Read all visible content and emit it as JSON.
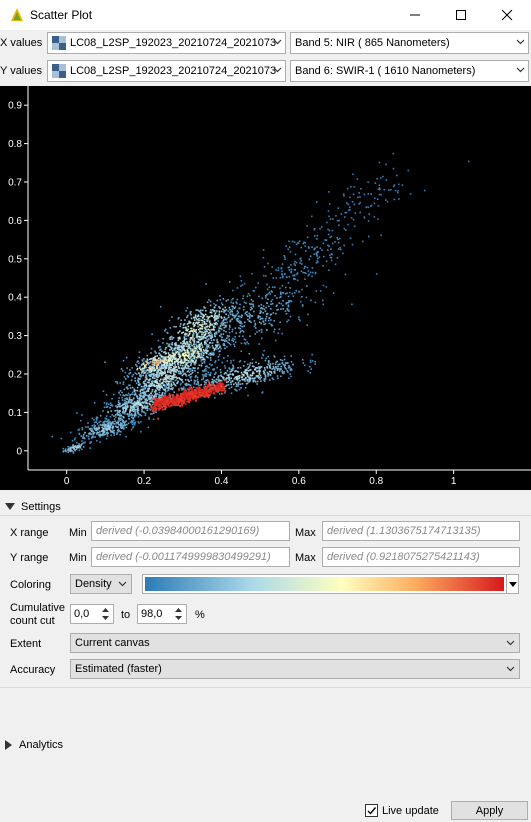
{
  "window": {
    "title": "Scatter Plot",
    "controls": [
      "minimize-icon",
      "maximize-icon",
      "close-icon"
    ]
  },
  "x_values": {
    "label": "X values",
    "layer": "LC08_L2SP_192023_20210724_2021073",
    "band": "Band 5: NIR ( 865 Nanometers)"
  },
  "y_values": {
    "label": "Y values",
    "layer": "LC08_L2SP_192023_20210724_2021073",
    "band": "Band 6: SWIR-1 ( 1610 Nanometers)"
  },
  "chart_data": {
    "type": "scatter",
    "title": "",
    "xlabel": "",
    "ylabel": "",
    "xlim": [
      -0.1,
      1.2
    ],
    "ylim": [
      -0.05,
      0.95
    ],
    "x_ticks": [
      "0",
      "0.2",
      "0.4",
      "0.6",
      "0.8",
      "1"
    ],
    "y_ticks": [
      "0",
      "0.1",
      "0.2",
      "0.3",
      "0.4",
      "0.5",
      "0.6",
      "0.7",
      "0.8",
      "0.9"
    ],
    "coloring": "density",
    "background": "#000000",
    "ramp": [
      "#2c7bb6",
      "#abd9e9",
      "#ffffbf",
      "#fdae61",
      "#d7191c"
    ],
    "density_regions": [
      {
        "x": 0.02,
        "y": 0.01,
        "sx": 0.015,
        "sy": 0.008,
        "level": 0.3,
        "n": 60
      },
      {
        "x": 0.1,
        "y": 0.06,
        "sx": 0.04,
        "sy": 0.02,
        "level": 0.25,
        "n": 260
      },
      {
        "x": 0.18,
        "y": 0.12,
        "sx": 0.05,
        "sy": 0.03,
        "level": 0.3,
        "n": 380
      },
      {
        "x": 0.25,
        "y": 0.19,
        "sx": 0.06,
        "sy": 0.05,
        "level": 0.35,
        "n": 600
      },
      {
        "x": 0.23,
        "y": 0.23,
        "sx": 0.03,
        "sy": 0.02,
        "level": 0.85,
        "n": 150
      },
      {
        "x": 0.3,
        "y": 0.25,
        "sx": 0.06,
        "sy": 0.04,
        "level": 0.5,
        "n": 450
      },
      {
        "x": 0.34,
        "y": 0.32,
        "sx": 0.05,
        "sy": 0.05,
        "level": 0.45,
        "n": 420
      },
      {
        "x": 0.46,
        "y": 0.2,
        "sx": 0.07,
        "sy": 0.03,
        "level": 0.3,
        "n": 420
      },
      {
        "x": 0.48,
        "y": 0.35,
        "sx": 0.08,
        "sy": 0.06,
        "level": 0.15,
        "n": 320
      },
      {
        "x": 0.62,
        "y": 0.5,
        "sx": 0.07,
        "sy": 0.07,
        "level": 0.05,
        "n": 200
      },
      {
        "x": 0.78,
        "y": 0.66,
        "sx": 0.06,
        "sy": 0.06,
        "level": 0.02,
        "n": 90
      }
    ],
    "core_band": {
      "x0": 0.22,
      "y0": 0.12,
      "x1": 0.4,
      "y1": 0.17,
      "level": 1.0
    }
  },
  "settings": {
    "header": "Settings",
    "x_range": {
      "label": "X range",
      "min_label": "Min",
      "min_placeholder": "derived (-0.03984000161290169)",
      "max_label": "Max",
      "max_placeholder": "derived (1.1303675174713135)"
    },
    "y_range": {
      "label": "Y range",
      "min_label": "Min",
      "min_placeholder": "derived (-0.0011749999830499291)",
      "max_label": "Max",
      "max_placeholder": "derived (0.9218075275421143)"
    },
    "coloring": {
      "label": "Coloring",
      "value": "Density"
    },
    "cumulative": {
      "label_line1": "Cumulative",
      "label_line2": "count cut",
      "from": "0,0",
      "to_label": "to",
      "to": "98,0",
      "unit": "%"
    },
    "extent": {
      "label": "Extent",
      "value": "Current canvas"
    },
    "accuracy": {
      "label": "Accuracy",
      "value": "Estimated (faster)"
    }
  },
  "analytics": {
    "header": "Analytics"
  },
  "footer": {
    "live_update_label": "Live update",
    "live_update_checked": true,
    "apply_label": "Apply"
  }
}
